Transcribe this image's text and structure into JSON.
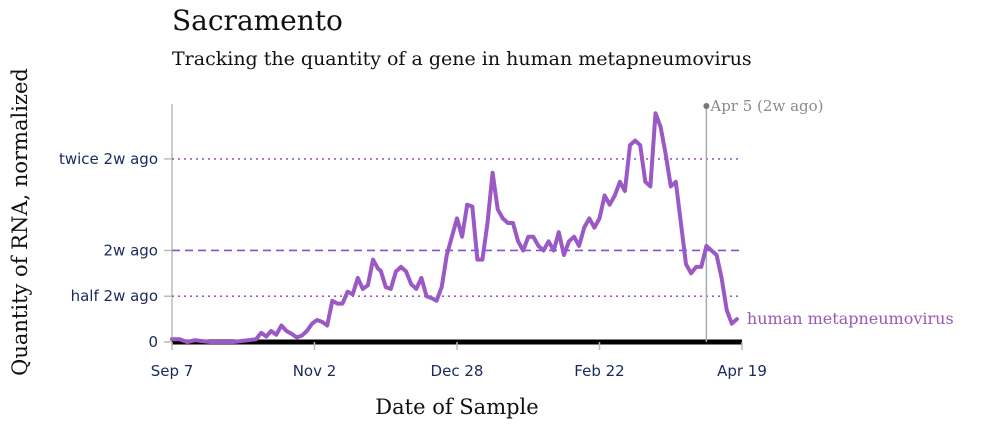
{
  "chart_data": {
    "type": "line",
    "title": "Sacramento",
    "subtitle": "Tracking the quantity of a gene in human metapneumovirus",
    "xlabel": "Date of Sample",
    "ylabel": "Quantity of RNA, normalized",
    "x_ticks": [
      "Sep 7",
      "Nov 2",
      "Dec 28",
      "Feb 22",
      "Apr 19"
    ],
    "x_domain_days": [
      0,
      224
    ],
    "y_domain": [
      0,
      2.6
    ],
    "y_ticks": [
      {
        "label": "0",
        "value": 0,
        "style": "none"
      },
      {
        "label": "half 2w ago",
        "value": 0.5,
        "style": "dotted"
      },
      {
        "label": "2w ago",
        "value": 1.0,
        "style": "dashed"
      },
      {
        "label": "twice 2w ago",
        "value": 2.0,
        "style": "dotted"
      }
    ],
    "annotation": {
      "label": "Apr 5 (2w ago)",
      "day": 210
    },
    "series": [
      {
        "name": "human metapneumovirus",
        "color": "#9b59c6",
        "points": [
          [
            0,
            0.03
          ],
          [
            3,
            0.03
          ],
          [
            6,
            0.0
          ],
          [
            9,
            0.02
          ],
          [
            12,
            0.01
          ],
          [
            15,
            0.0
          ],
          [
            18,
            0.0
          ],
          [
            21,
            0.0
          ],
          [
            24,
            0.0
          ],
          [
            27,
            0.01
          ],
          [
            30,
            0.02
          ],
          [
            33,
            0.03
          ],
          [
            35,
            0.1
          ],
          [
            37,
            0.06
          ],
          [
            39,
            0.12
          ],
          [
            41,
            0.08
          ],
          [
            43,
            0.18
          ],
          [
            45,
            0.12
          ],
          [
            47,
            0.09
          ],
          [
            49,
            0.05
          ],
          [
            51,
            0.07
          ],
          [
            53,
            0.12
          ],
          [
            55,
            0.2
          ],
          [
            57,
            0.24
          ],
          [
            59,
            0.22
          ],
          [
            61,
            0.18
          ],
          [
            63,
            0.45
          ],
          [
            65,
            0.42
          ],
          [
            67,
            0.42
          ],
          [
            69,
            0.55
          ],
          [
            71,
            0.52
          ],
          [
            73,
            0.7
          ],
          [
            75,
            0.58
          ],
          [
            77,
            0.62
          ],
          [
            79,
            0.9
          ],
          [
            81,
            0.8
          ],
          [
            82,
            0.78
          ],
          [
            84,
            0.6
          ],
          [
            86,
            0.58
          ],
          [
            88,
            0.77
          ],
          [
            90,
            0.82
          ],
          [
            92,
            0.77
          ],
          [
            94,
            0.63
          ],
          [
            96,
            0.58
          ],
          [
            98,
            0.7
          ],
          [
            100,
            0.5
          ],
          [
            102,
            0.48
          ],
          [
            104,
            0.45
          ],
          [
            106,
            0.6
          ],
          [
            108,
            0.95
          ],
          [
            110,
            1.15
          ],
          [
            112,
            1.35
          ],
          [
            114,
            1.15
          ],
          [
            116,
            1.5
          ],
          [
            118,
            1.48
          ],
          [
            120,
            0.9
          ],
          [
            122,
            0.9
          ],
          [
            124,
            1.3
          ],
          [
            126,
            1.85
          ],
          [
            128,
            1.45
          ],
          [
            130,
            1.35
          ],
          [
            132,
            1.3
          ],
          [
            134,
            1.3
          ],
          [
            136,
            1.1
          ],
          [
            138,
            1.0
          ],
          [
            140,
            1.15
          ],
          [
            142,
            1.15
          ],
          [
            144,
            1.05
          ],
          [
            146,
            1.0
          ],
          [
            148,
            1.1
          ],
          [
            150,
            1.0
          ],
          [
            152,
            1.2
          ],
          [
            154,
            0.95
          ],
          [
            156,
            1.1
          ],
          [
            158,
            1.15
          ],
          [
            160,
            1.05
          ],
          [
            162,
            1.25
          ],
          [
            164,
            1.35
          ],
          [
            166,
            1.25
          ],
          [
            168,
            1.35
          ],
          [
            170,
            1.6
          ],
          [
            172,
            1.5
          ],
          [
            174,
            1.6
          ],
          [
            176,
            1.75
          ],
          [
            178,
            1.65
          ],
          [
            180,
            2.15
          ],
          [
            182,
            2.2
          ],
          [
            184,
            2.15
          ],
          [
            186,
            1.75
          ],
          [
            188,
            1.7
          ],
          [
            190,
            2.5
          ],
          [
            192,
            2.35
          ],
          [
            194,
            2.05
          ],
          [
            196,
            1.7
          ],
          [
            198,
            1.75
          ],
          [
            200,
            1.3
          ],
          [
            202,
            0.85
          ],
          [
            204,
            0.75
          ],
          [
            206,
            0.82
          ],
          [
            208,
            0.82
          ],
          [
            210,
            1.05
          ],
          [
            212,
            1.0
          ],
          [
            214,
            0.95
          ],
          [
            216,
            0.7
          ],
          [
            218,
            0.35
          ],
          [
            220,
            0.2
          ],
          [
            222,
            0.25
          ]
        ]
      }
    ]
  }
}
